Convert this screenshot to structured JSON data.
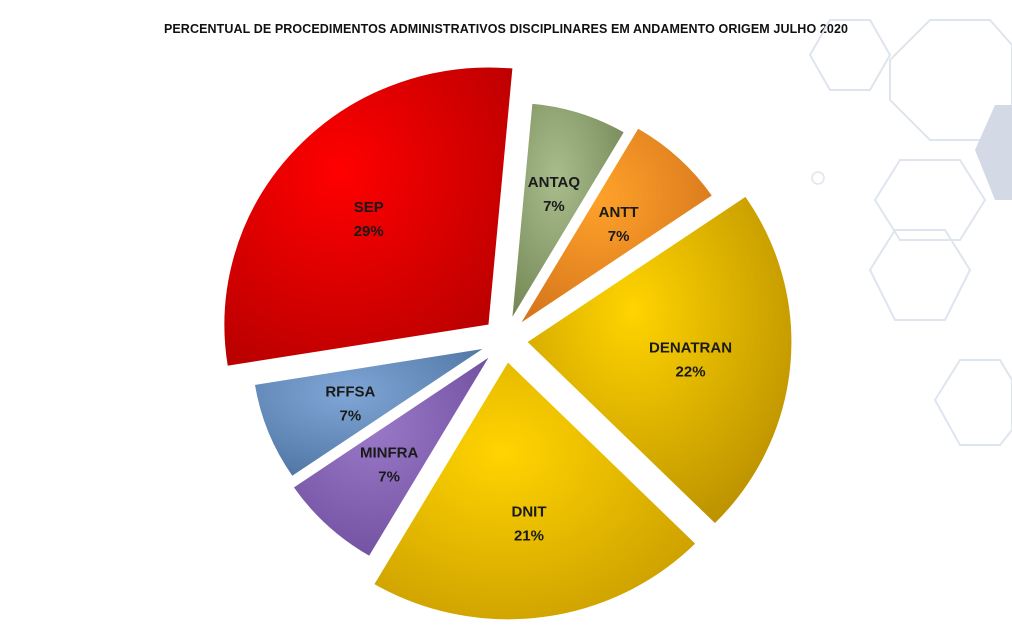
{
  "chart_data": {
    "type": "pie",
    "title": "PERCENTUAL DE PROCEDIMENTOS ADMINISTRATIVOS DISCIPLINARES EM ANDAMENTO ORIGEM JULHO 2020",
    "exploded": true,
    "slices": [
      {
        "label": "SEP",
        "value": 29,
        "value_label": "29%",
        "color": "#ff0000",
        "color_dark": "#b30000"
      },
      {
        "label": "ANTAQ",
        "value": 7,
        "value_label": "7%",
        "color": "#a9bc8c",
        "color_dark": "#6f8250"
      },
      {
        "label": "ANTT",
        "value": 7,
        "value_label": "7%",
        "color": "#ffa22a",
        "color_dark": "#d0701a"
      },
      {
        "label": "DENATRAN",
        "value": 22,
        "value_label": "22%",
        "color": "#ffd400",
        "color_dark": "#b48a00"
      },
      {
        "label": "DNIT",
        "value": 21,
        "value_label": "21%",
        "color": "#ffd400",
        "color_dark": "#c79a00"
      },
      {
        "label": "MINFRA",
        "value": 7,
        "value_label": "7%",
        "color": "#9a79c8",
        "color_dark": "#6a4a9a"
      },
      {
        "label": "RFFSA",
        "value": 7,
        "value_label": "7%",
        "color": "#7fa6d6",
        "color_dark": "#4a6f9e"
      }
    ]
  }
}
